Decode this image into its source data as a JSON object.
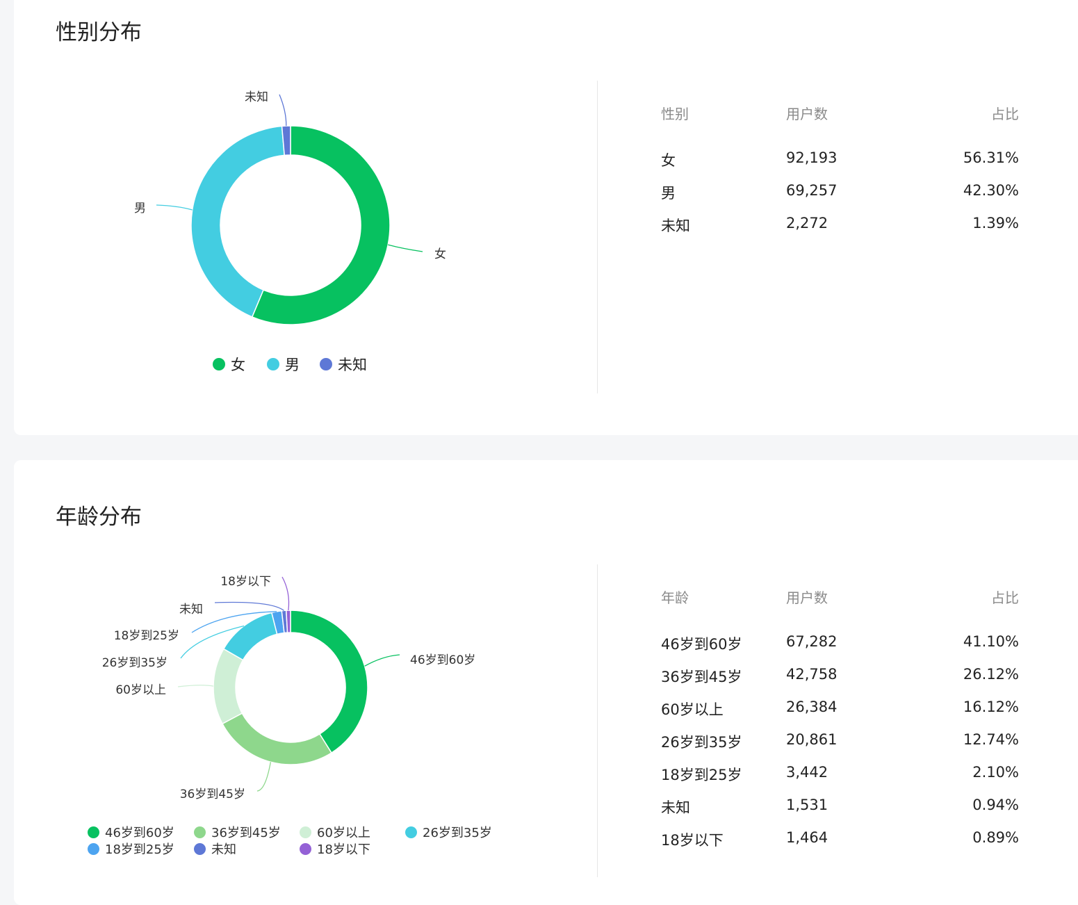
{
  "gender_section": {
    "title": "性别分布",
    "table_headers": [
      "性别",
      "用户数",
      "占比"
    ],
    "rows": [
      {
        "label": "女",
        "count": "92,193",
        "pct": "56.31%"
      },
      {
        "label": "男",
        "count": "69,257",
        "pct": "42.30%"
      },
      {
        "label": "未知",
        "count": "2,272",
        "pct": "1.39%"
      }
    ]
  },
  "age_section": {
    "title": "年龄分布",
    "table_headers": [
      "年龄",
      "用户数",
      "占比"
    ],
    "rows": [
      {
        "label": "46岁到60岁",
        "count": "67,282",
        "pct": "41.10%"
      },
      {
        "label": "36岁到45岁",
        "count": "42,758",
        "pct": "26.12%"
      },
      {
        "label": "60岁以上",
        "count": "26,384",
        "pct": "16.12%"
      },
      {
        "label": "26岁到35岁",
        "count": "20,861",
        "pct": "12.74%"
      },
      {
        "label": "18岁到25岁",
        "count": "3,442",
        "pct": "2.10%"
      },
      {
        "label": "未知",
        "count": "1,531",
        "pct": "0.94%"
      },
      {
        "label": "18岁以下",
        "count": "1,464",
        "pct": "0.89%"
      }
    ]
  },
  "chart_data": [
    {
      "type": "pie",
      "variant": "donut",
      "legend_position": "bottom",
      "categories": [
        "女",
        "男",
        "未知"
      ],
      "values": [
        92193,
        69257,
        2272
      ],
      "colors": [
        "#07c160",
        "#43cde1",
        "#5e78d6"
      ]
    },
    {
      "type": "pie",
      "variant": "donut",
      "legend_position": "bottom",
      "categories": [
        "46岁到60岁",
        "36岁到45岁",
        "60岁以上",
        "26岁到35岁",
        "18岁到25岁",
        "未知",
        "18岁以下"
      ],
      "values": [
        67282,
        42758,
        26384,
        20861,
        3442,
        1531,
        1464
      ],
      "colors": [
        "#07c160",
        "#8ed78c",
        "#cfefd6",
        "#43cde1",
        "#4da4f0",
        "#5e78d6",
        "#9461d6"
      ]
    }
  ]
}
